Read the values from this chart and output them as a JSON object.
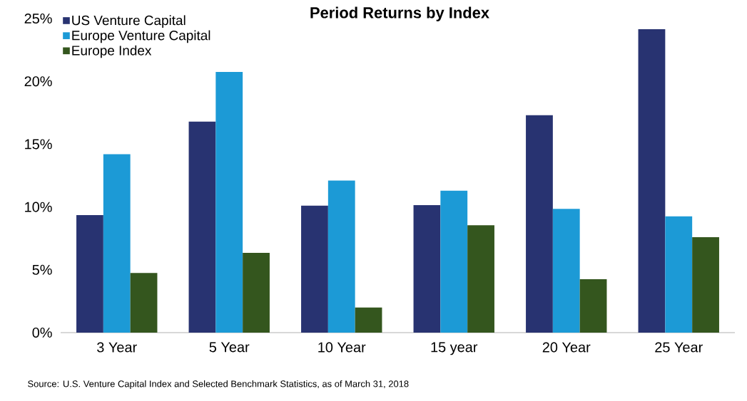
{
  "chart_data": {
    "type": "bar",
    "title": "Period Returns by Index",
    "categories": [
      "3 Year",
      "5 Year",
      "10 Year",
      "15 year",
      "20 Year",
      "25 Year"
    ],
    "series": [
      {
        "name": "US Venture Capital",
        "color": "#283371",
        "values": [
          9.35,
          16.8,
          10.1,
          10.15,
          17.3,
          24.15
        ]
      },
      {
        "name": "Europe Venture Capital",
        "color": "#1c9ad6",
        "values": [
          14.2,
          20.75,
          12.1,
          11.3,
          9.85,
          9.25
        ]
      },
      {
        "name": "Europe Index",
        "color": "#34561e",
        "values": [
          4.75,
          6.35,
          2.0,
          8.55,
          4.25,
          7.6
        ]
      }
    ],
    "ylim": [
      0,
      25
    ],
    "yticks": [
      {
        "value": 0,
        "label": "0%"
      },
      {
        "value": 5,
        "label": "5%"
      },
      {
        "value": 10,
        "label": "10%"
      },
      {
        "value": 15,
        "label": "15%"
      },
      {
        "value": 20,
        "label": "20%"
      },
      {
        "value": 25,
        "label": "25%"
      }
    ],
    "legend": "top left",
    "annotations": [
      "Source: U.S. Venture Capital Index and Selected Benchmark Statistics, as of March 31, 2018"
    ]
  }
}
